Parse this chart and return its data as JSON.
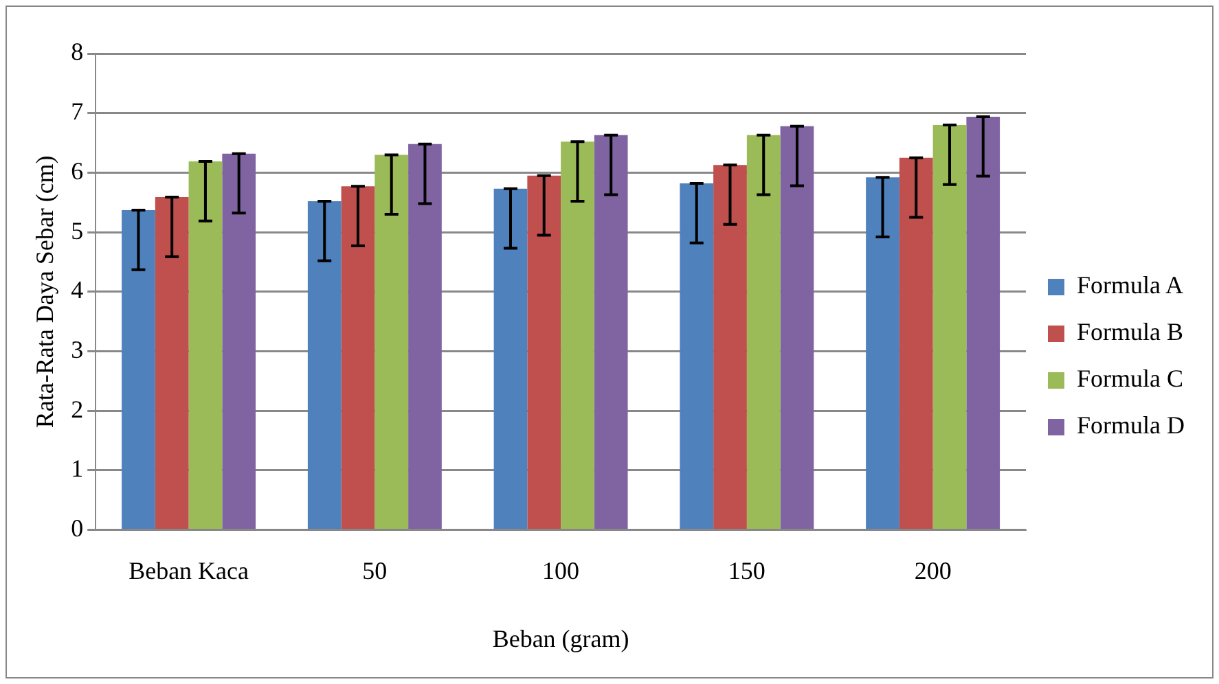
{
  "chart_data": {
    "type": "bar",
    "xlabel": "Beban (gram)",
    "ylabel": "Rata-Rata Daya Sebar (cm)",
    "categories": [
      "Beban Kaca",
      "50",
      "100",
      "150",
      "200"
    ],
    "series": [
      {
        "name": "Formula A",
        "color": "#4f81bd",
        "values": [
          5.37,
          5.52,
          5.73,
          5.82,
          5.92
        ],
        "errors": [
          [
            4.37,
            5.37
          ],
          [
            4.52,
            5.52
          ],
          [
            4.73,
            5.73
          ],
          [
            4.82,
            5.82
          ],
          [
            4.92,
            5.92
          ]
        ]
      },
      {
        "name": "Formula B",
        "color": "#c0504d",
        "values": [
          5.59,
          5.77,
          5.95,
          6.13,
          6.25
        ],
        "errors": [
          [
            4.59,
            5.59
          ],
          [
            4.77,
            5.77
          ],
          [
            4.95,
            5.95
          ],
          [
            5.13,
            6.13
          ],
          [
            5.25,
            6.25
          ]
        ]
      },
      {
        "name": "Formula C",
        "color": "#9bbb59",
        "values": [
          6.19,
          6.3,
          6.52,
          6.63,
          6.8
        ],
        "errors": [
          [
            5.19,
            6.19
          ],
          [
            5.3,
            6.3
          ],
          [
            5.52,
            6.52
          ],
          [
            5.63,
            6.63
          ],
          [
            5.8,
            6.8
          ]
        ]
      },
      {
        "name": "Formula D",
        "color": "#8064a2",
        "values": [
          6.32,
          6.48,
          6.63,
          6.78,
          6.94
        ],
        "errors": [
          [
            5.32,
            6.32
          ],
          [
            5.48,
            6.48
          ],
          [
            5.63,
            6.63
          ],
          [
            5.78,
            6.78
          ],
          [
            5.94,
            6.94
          ]
        ]
      }
    ],
    "ylim": [
      0,
      8
    ],
    "yticks": [
      0,
      1,
      2,
      3,
      4,
      5,
      6,
      7,
      8
    ],
    "grid": "y",
    "legend": "right"
  }
}
